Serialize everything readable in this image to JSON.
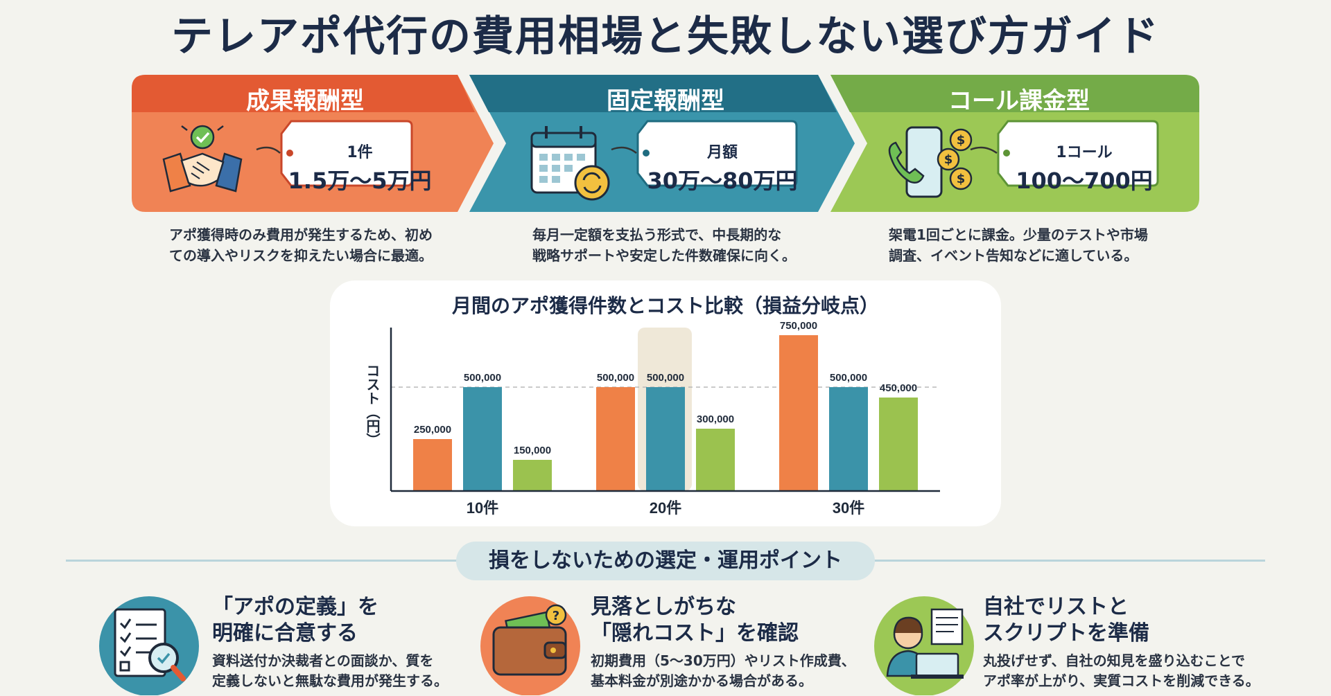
{
  "title": "テレアポ代行の費用相場と失敗しない選び方ガイド",
  "plans": [
    {
      "title": "成果報酬型",
      "price_label": "1件",
      "price": "1.5万〜5万円",
      "desc_lines": [
        "アポ獲得時のみ費用が発生するため、初め",
        "ての導入やリスクを抑えたい場合に最適。"
      ],
      "icon": "handshake-icon",
      "color": "#e9663f"
    },
    {
      "title": "固定報酬型",
      "price_label": "月額",
      "price": "30万〜80万円",
      "desc_lines": [
        "毎月一定額を支払う形式で、中長期的な",
        "戦略サポートや安定した件数確保に向く。"
      ],
      "icon": "calendar-icon",
      "color": "#2f8ea3"
    },
    {
      "title": "コール課金型",
      "price_label": "1コール",
      "price": "100〜700円",
      "desc_lines": [
        "架電1回ごとに課金。少量のテストや市場",
        "調査、イベント告知などに適している。"
      ],
      "icon": "phone-coins-icon",
      "color": "#8fbf47"
    }
  ],
  "chart_data": {
    "type": "bar",
    "title": "月間のアポ獲得件数とコスト比較（損益分岐点）",
    "ylabel": "コスト（円）",
    "xlabel": "",
    "categories": [
      "10件",
      "20件",
      "30件"
    ],
    "series": [
      {
        "values": [
          250000,
          500000,
          750000
        ],
        "color": "#ef8147"
      },
      {
        "values": [
          500000,
          500000,
          500000
        ],
        "color": "#3b93a9"
      },
      {
        "values": [
          150000,
          300000,
          450000
        ],
        "color": "#9bc24f"
      }
    ],
    "value_labels": [
      [
        "250,000",
        "500,000",
        "150,000"
      ],
      [
        "500,000",
        "500,000",
        "300,000"
      ],
      [
        "750,000",
        "500,000",
        "450,000"
      ]
    ],
    "ylim": [
      0,
      800000
    ],
    "reference_line": 500000,
    "grid": false,
    "legend": "none"
  },
  "points": {
    "heading": "損をしないための選定・運用ポイント",
    "items": [
      {
        "title_lines": [
          "「アポの定義」を",
          "明確に合意する"
        ],
        "desc_lines": [
          "資料送付か決裁者との面談か、質を",
          "定義しないと無駄な費用が発生する。"
        ],
        "icon": "checklist-magnifier-icon"
      },
      {
        "title_lines": [
          "見落としがちな",
          "「隠れコスト」を確認"
        ],
        "desc_lines": [
          "初期費用（5〜30万円）やリスト作成費、",
          "基本料金が別途かかる場合がある。"
        ],
        "icon": "wallet-icon"
      },
      {
        "title_lines": [
          "自社でリストと",
          "スクリプトを準備"
        ],
        "desc_lines": [
          "丸投げせず、自社の知見を盛り込むことで",
          "アポ率が上がり、実質コストを削減できる。"
        ],
        "icon": "operator-laptop-icon"
      }
    ]
  }
}
